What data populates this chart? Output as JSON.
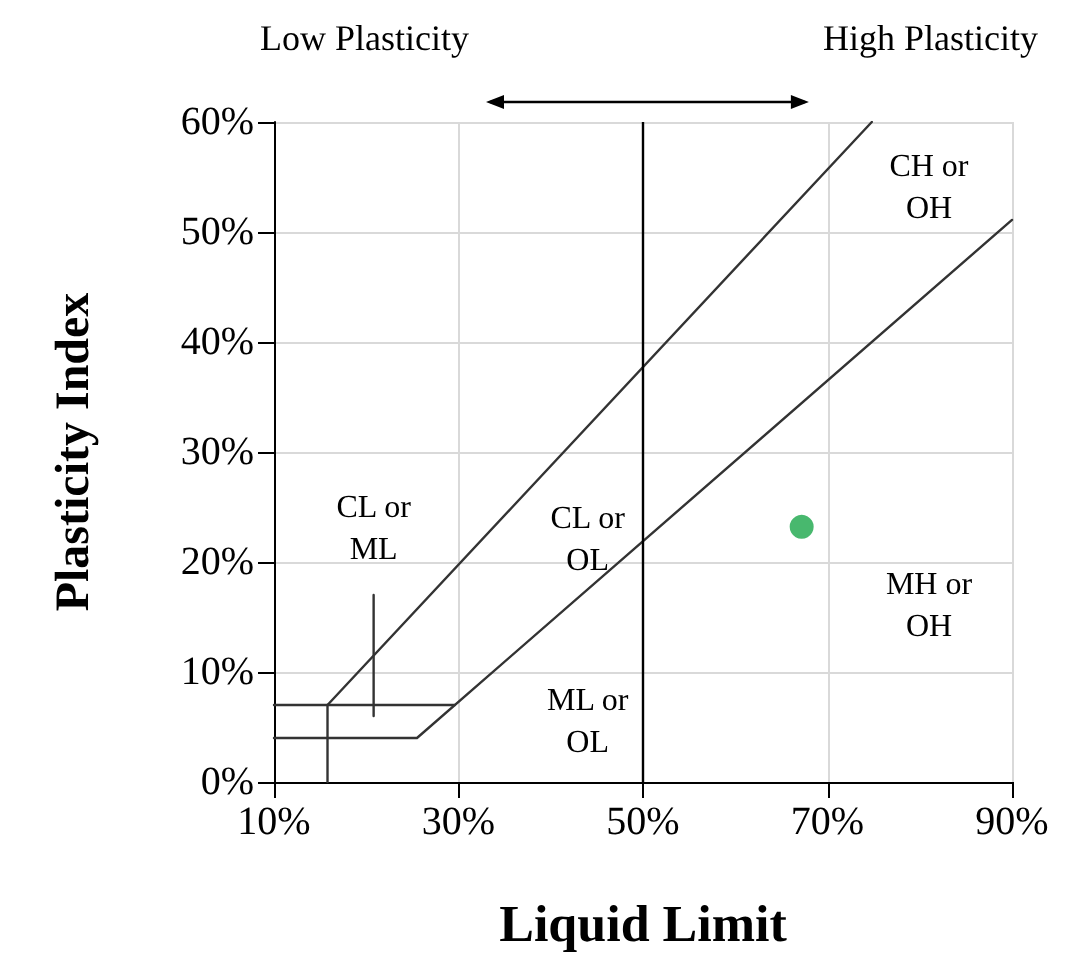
{
  "chart_data": {
    "type": "line",
    "xlabel": "Liquid Limit",
    "ylabel": "Plasticity Index",
    "xlim": [
      10,
      90
    ],
    "xticks": [
      {
        "value": 10,
        "label": "10%"
      },
      {
        "value": 30,
        "label": "30%"
      },
      {
        "value": 50,
        "label": "50%"
      },
      {
        "value": 70,
        "label": "70%"
      },
      {
        "value": 90,
        "label": "90%"
      }
    ],
    "ylim": [
      0,
      60
    ],
    "yticks": [
      {
        "value": 0,
        "label": "0%"
      },
      {
        "value": 10,
        "label": "10%"
      },
      {
        "value": 20,
        "label": "20%"
      },
      {
        "value": 30,
        "label": "30%"
      },
      {
        "value": 40,
        "label": "40%"
      },
      {
        "value": 50,
        "label": "50%"
      },
      {
        "value": 60,
        "label": "60%"
      }
    ],
    "grid": true,
    "line_style": "solid",
    "series": [
      {
        "color": "#333333",
        "x": [
          10,
          25.5,
          90
        ],
        "values": [
          4,
          4,
          51.1
        ]
      },
      {
        "color": "#333333",
        "x": [
          15.8,
          74.8
        ],
        "values": [
          7,
          60
        ]
      },
      {
        "color": "#333333",
        "x": [
          10,
          29.6
        ],
        "values": [
          7,
          7
        ]
      },
      {
        "color": "#333333",
        "x": [
          15.8,
          15.8
        ],
        "values": [
          0,
          7
        ]
      },
      {
        "color": "#333333",
        "x": [
          20.8,
          20.8
        ],
        "values": [
          6,
          17
        ]
      },
      {
        "type": "scatter",
        "color": "#1aa64a",
        "marker": "circle",
        "x": [
          67.2
        ],
        "values": [
          23.2
        ]
      }
    ],
    "ref_lines": [
      {
        "axis": "x",
        "value": 50,
        "color": "#000000"
      }
    ],
    "annotations": [
      "Low Plasticity",
      "High Plasticity",
      "CH or\nOH",
      "CL or\nML",
      "CL or\nOL",
      "ML or\nOL",
      "MH or\nOH"
    ]
  }
}
